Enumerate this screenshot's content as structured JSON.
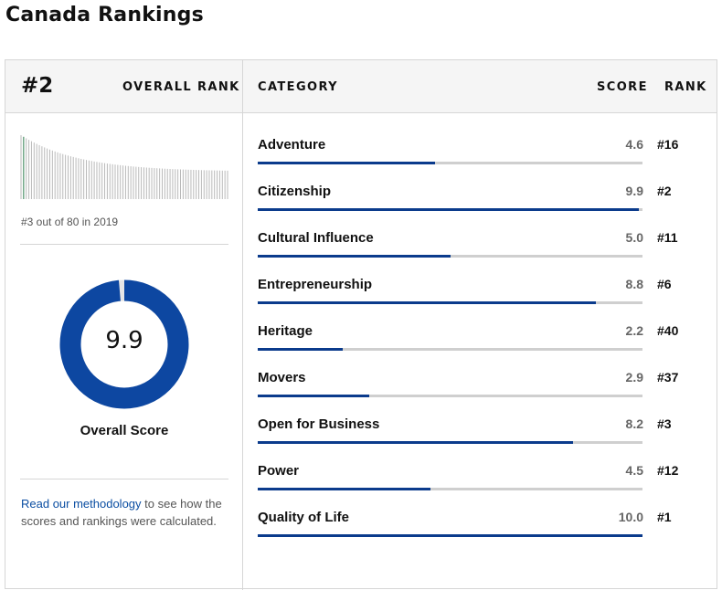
{
  "page_title": "Canada Rankings",
  "overall": {
    "rank": "#2",
    "rank_label": "OVERALL RANK",
    "history_note": "#3 out of 80 in 2019",
    "score": "9.9",
    "score_value": 9.9,
    "score_label": "Overall Score",
    "methodology_link": "Read our methodology",
    "methodology_text": " to see how the scores and rankings were calculated."
  },
  "columns": {
    "category": "CATEGORY",
    "score": "SCORE",
    "rank": "RANK"
  },
  "colors": {
    "accent": "#0b3b8c",
    "donut": "#0d47a1",
    "track": "#cfcfcf",
    "link": "#0b4ea2"
  },
  "categories": [
    {
      "name": "Adventure",
      "score": "4.6",
      "value": 4.6,
      "rank": "#16"
    },
    {
      "name": "Citizenship",
      "score": "9.9",
      "value": 9.9,
      "rank": "#2"
    },
    {
      "name": "Cultural Influence",
      "score": "5.0",
      "value": 5.0,
      "rank": "#11"
    },
    {
      "name": "Entrepreneurship",
      "score": "8.8",
      "value": 8.8,
      "rank": "#6"
    },
    {
      "name": "Heritage",
      "score": "2.2",
      "value": 2.2,
      "rank": "#40"
    },
    {
      "name": "Movers",
      "score": "2.9",
      "value": 2.9,
      "rank": "#37"
    },
    {
      "name": "Open for Business",
      "score": "8.2",
      "value": 8.2,
      "rank": "#3"
    },
    {
      "name": "Power",
      "score": "4.5",
      "value": 4.5,
      "rank": "#12"
    },
    {
      "name": "Quality of Life",
      "score": "10.0",
      "value": 10.0,
      "rank": "#1"
    }
  ]
}
